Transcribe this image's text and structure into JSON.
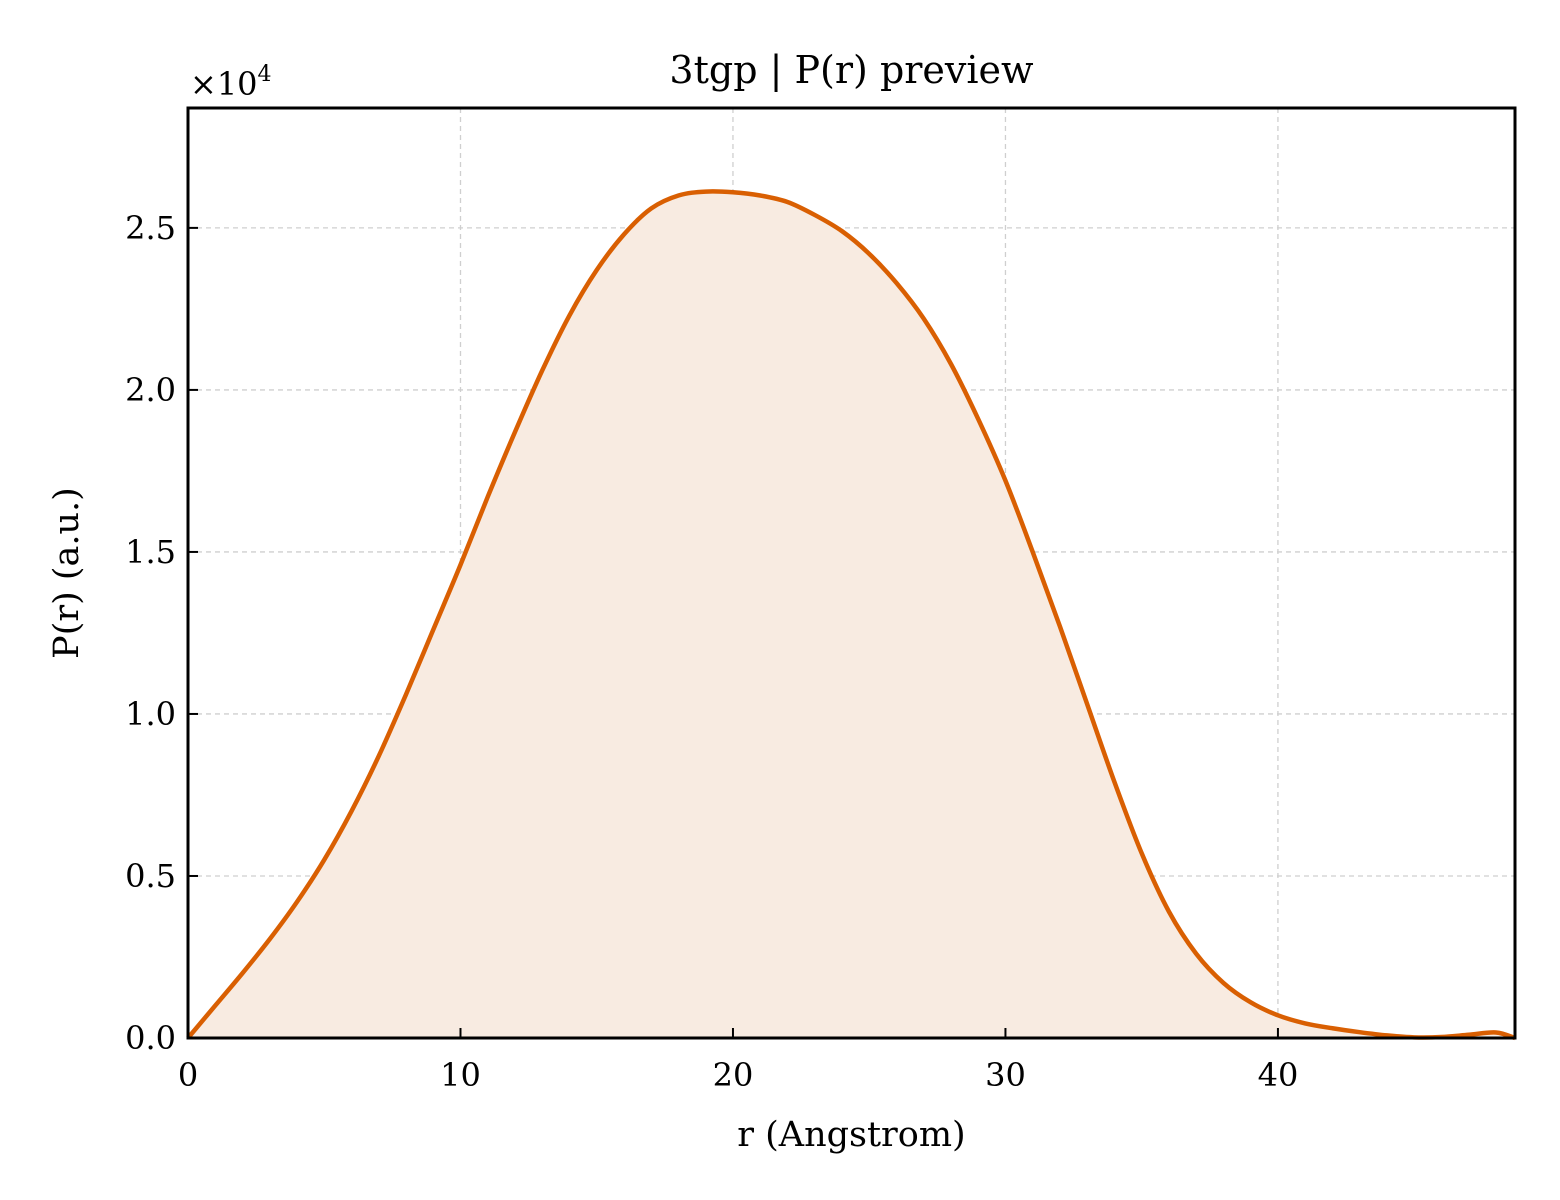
{
  "chart_data": {
    "type": "area",
    "title": "3tgp | P(r) preview",
    "xlabel": "r (Angstrom)",
    "ylabel": "P(r) (a.u.)",
    "y_multiplier": "×10",
    "y_multiplier_exp": "4",
    "xlim": [
      0,
      48.7
    ],
    "ylim": [
      0,
      2.87
    ],
    "xticks": [
      0,
      10,
      20,
      30,
      40
    ],
    "xtick_labels": [
      "0",
      "10",
      "20",
      "30",
      "40"
    ],
    "yticks": [
      0.0,
      0.5,
      1.0,
      1.5,
      2.0,
      2.5
    ],
    "ytick_labels": [
      "0.0",
      "0.5",
      "1.0",
      "1.5",
      "2.0",
      "2.5"
    ],
    "grid": true,
    "colors": {
      "line": "#d95f02",
      "fill": "#f8ebe1"
    },
    "series": [
      {
        "x": [
          0,
          1,
          2,
          3,
          4,
          5,
          6,
          7,
          8,
          9,
          10,
          11,
          12,
          13,
          14,
          15,
          16,
          17,
          18,
          19,
          20,
          21,
          22,
          23,
          24,
          25,
          26,
          27,
          28,
          29,
          30,
          31,
          32,
          33,
          34,
          35,
          36,
          37,
          38,
          39,
          40,
          41,
          42,
          43,
          44,
          45,
          46,
          47,
          48,
          48.7
        ],
        "y": [
          0.0,
          0.1,
          0.2,
          0.305,
          0.42,
          0.55,
          0.7,
          0.87,
          1.06,
          1.26,
          1.46,
          1.67,
          1.87,
          2.06,
          2.23,
          2.37,
          2.48,
          2.56,
          2.6,
          2.612,
          2.61,
          2.6,
          2.58,
          2.54,
          2.49,
          2.42,
          2.33,
          2.22,
          2.08,
          1.91,
          1.72,
          1.5,
          1.27,
          1.03,
          0.79,
          0.57,
          0.39,
          0.26,
          0.17,
          0.11,
          0.07,
          0.045,
          0.03,
          0.018,
          0.008,
          0.002,
          0.003,
          0.01,
          0.017,
          0.0
        ]
      }
    ]
  }
}
